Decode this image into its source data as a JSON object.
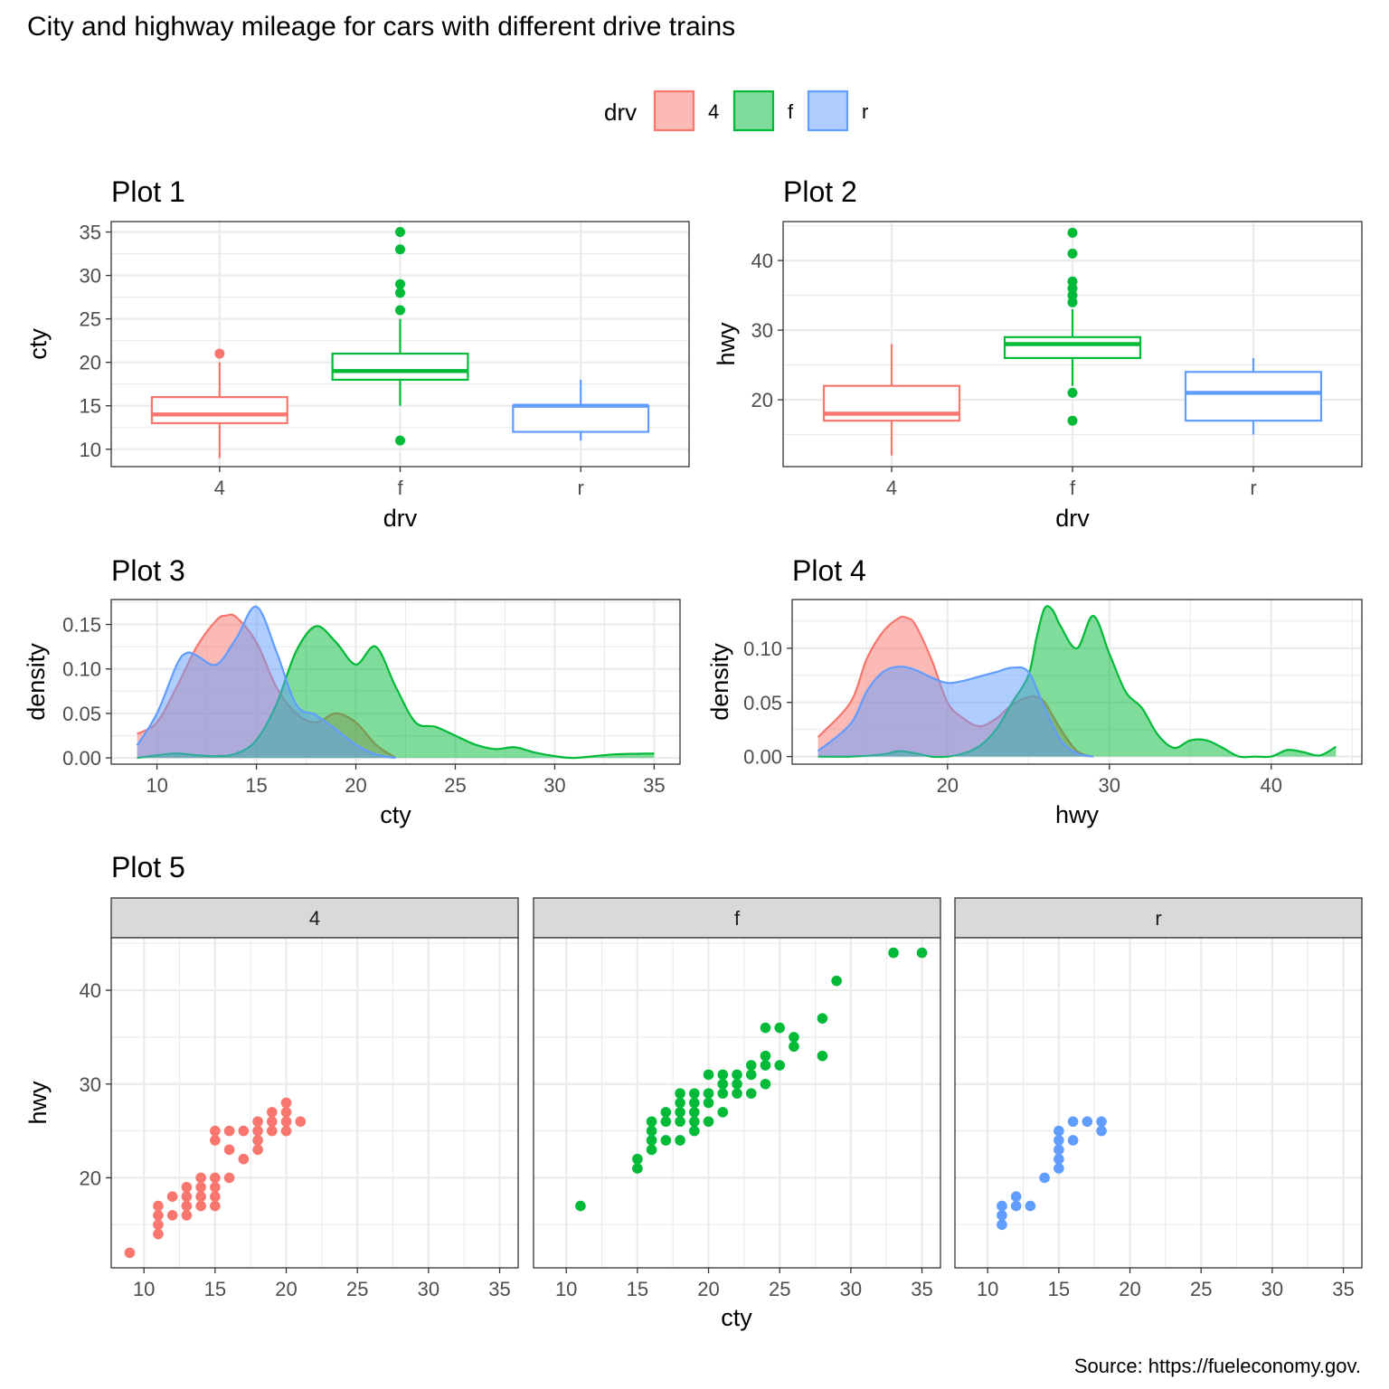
{
  "figure": {
    "title": "City and highway mileage for cars with different drive trains",
    "caption": "Source: https://fueleconomy.gov."
  },
  "legend": {
    "title": "drv",
    "position": "top",
    "entries": [
      {
        "label": "4",
        "color": "#F8766D"
      },
      {
        "label": "f",
        "color": "#00BA38"
      },
      {
        "label": "r",
        "color": "#619CFF"
      }
    ]
  },
  "chart_data": [
    {
      "id": "plot1",
      "type": "boxplot",
      "title": "Plot 1",
      "xlabel": "drv",
      "ylabel": "cty",
      "categories": [
        "4",
        "f",
        "r"
      ],
      "ylim": [
        8,
        36.2
      ],
      "yticks": [
        10,
        15,
        20,
        25,
        30,
        35
      ],
      "grid": true,
      "series": [
        {
          "name": "4",
          "lower_whisker": 9,
          "q1": 13,
          "median": 14,
          "q3": 16,
          "upper_whisker": 20,
          "outliers": [
            21
          ]
        },
        {
          "name": "f",
          "lower_whisker": 15,
          "q1": 18,
          "median": 19,
          "q3": 21,
          "upper_whisker": 25,
          "outliers": [
            11,
            26,
            28,
            29,
            33,
            35
          ]
        },
        {
          "name": "r",
          "lower_whisker": 11,
          "q1": 12,
          "median": 15,
          "q3": 15,
          "upper_whisker": 18,
          "outliers": []
        }
      ]
    },
    {
      "id": "plot2",
      "type": "boxplot",
      "title": "Plot 2",
      "xlabel": "drv",
      "ylabel": "hwy",
      "categories": [
        "4",
        "f",
        "r"
      ],
      "ylim": [
        10.4,
        45.6
      ],
      "yticks": [
        20,
        30,
        40
      ],
      "grid": true,
      "series": [
        {
          "name": "4",
          "lower_whisker": 12,
          "q1": 17,
          "median": 18,
          "q3": 22,
          "upper_whisker": 28,
          "outliers": []
        },
        {
          "name": "f",
          "lower_whisker": 22,
          "q1": 26,
          "median": 28,
          "q3": 29,
          "upper_whisker": 33,
          "outliers": [
            17,
            21,
            34,
            35,
            36,
            37,
            41,
            44
          ]
        },
        {
          "name": "r",
          "lower_whisker": 15,
          "q1": 17,
          "median": 21,
          "q3": 24,
          "upper_whisker": 26,
          "outliers": []
        }
      ]
    },
    {
      "id": "plot3",
      "type": "area",
      "title": "Plot 3",
      "xlabel": "cty",
      "ylabel": "density",
      "xlim": [
        7.7,
        36.3
      ],
      "ylim": [
        -0.007,
        0.178
      ],
      "xticks": [
        10,
        15,
        20,
        25,
        30,
        35
      ],
      "yticks": [
        0.0,
        0.05,
        0.1,
        0.15
      ],
      "ytick_labels": [
        "0.00",
        "0.05",
        "0.10",
        "0.15"
      ],
      "grid": true,
      "series": [
        {
          "name": "4",
          "x": [
            9,
            10,
            11,
            12,
            13,
            13.5,
            14,
            15,
            16,
            17,
            18,
            19,
            20,
            21,
            22
          ],
          "y": [
            0.027,
            0.04,
            0.08,
            0.125,
            0.155,
            0.16,
            0.158,
            0.13,
            0.08,
            0.05,
            0.04,
            0.05,
            0.04,
            0.015,
            0.0
          ]
        },
        {
          "name": "f",
          "x": [
            9,
            10,
            11,
            12,
            13,
            14,
            15,
            16,
            17,
            18,
            19,
            20,
            21,
            22,
            23,
            24,
            25,
            26,
            27,
            28,
            29,
            30,
            31,
            33,
            35
          ],
          "y": [
            0.0,
            0.003,
            0.005,
            0.003,
            0.002,
            0.005,
            0.02,
            0.06,
            0.12,
            0.148,
            0.13,
            0.105,
            0.125,
            0.08,
            0.04,
            0.035,
            0.025,
            0.015,
            0.01,
            0.012,
            0.006,
            0.002,
            0.0,
            0.004,
            0.005
          ]
        },
        {
          "name": "r",
          "x": [
            9,
            10,
            11,
            11.5,
            12,
            13,
            14,
            15,
            16,
            17,
            18,
            19,
            20,
            21,
            22
          ],
          "y": [
            0.014,
            0.05,
            0.105,
            0.118,
            0.115,
            0.105,
            0.135,
            0.17,
            0.12,
            0.06,
            0.048,
            0.032,
            0.015,
            0.004,
            0.0
          ]
        }
      ]
    },
    {
      "id": "plot4",
      "type": "area",
      "title": "Plot 4",
      "xlabel": "hwy",
      "ylabel": "density",
      "xlim": [
        10.4,
        45.6
      ],
      "ylim": [
        -0.007,
        0.145
      ],
      "xticks": [
        20,
        30,
        40
      ],
      "yticks": [
        0.0,
        0.05,
        0.1
      ],
      "ytick_labels": [
        "0.00",
        "0.05",
        "0.10"
      ],
      "grid": true,
      "series": [
        {
          "name": "4",
          "x": [
            12,
            14,
            15,
            16,
            17,
            17.5,
            18,
            19,
            20,
            21,
            22,
            23,
            24,
            25,
            25.5,
            26,
            27,
            28,
            29
          ],
          "y": [
            0.018,
            0.05,
            0.09,
            0.115,
            0.128,
            0.128,
            0.122,
            0.09,
            0.05,
            0.035,
            0.028,
            0.035,
            0.048,
            0.055,
            0.055,
            0.05,
            0.025,
            0.005,
            0.0
          ]
        },
        {
          "name": "f",
          "x": [
            12,
            14,
            16,
            17,
            18,
            19,
            20,
            21,
            22,
            23,
            24,
            25,
            25.5,
            26,
            26.5,
            27,
            28,
            29,
            30,
            31,
            32,
            33,
            34,
            35,
            36,
            37,
            38,
            39,
            40,
            41,
            42,
            43,
            44
          ],
          "y": [
            0.0,
            0.0,
            0.002,
            0.005,
            0.003,
            0.0,
            0.0,
            0.003,
            0.01,
            0.025,
            0.05,
            0.075,
            0.11,
            0.137,
            0.135,
            0.12,
            0.1,
            0.13,
            0.095,
            0.06,
            0.045,
            0.02,
            0.008,
            0.015,
            0.015,
            0.008,
            0.0,
            0.0,
            0.0,
            0.006,
            0.004,
            0.001,
            0.009
          ]
        },
        {
          "name": "r",
          "x": [
            12,
            14,
            15,
            16,
            17,
            18,
            19,
            20,
            21,
            22,
            23,
            24,
            25,
            26,
            27,
            28,
            29
          ],
          "y": [
            0.005,
            0.03,
            0.06,
            0.078,
            0.083,
            0.08,
            0.073,
            0.068,
            0.07,
            0.074,
            0.078,
            0.082,
            0.078,
            0.045,
            0.015,
            0.003,
            0.0
          ]
        }
      ]
    },
    {
      "id": "plot5",
      "type": "scatter",
      "title": "Plot 5",
      "xlabel": "cty",
      "ylabel": "hwy",
      "xlim": [
        7.7,
        36.3
      ],
      "ylim": [
        10.4,
        45.6
      ],
      "xticks": [
        10,
        15,
        20,
        25,
        30,
        35
      ],
      "yticks": [
        20,
        30,
        40
      ],
      "grid": true,
      "facets": [
        {
          "label": "4",
          "points": [
            [
              9,
              12
            ],
            [
              11,
              14
            ],
            [
              11,
              15
            ],
            [
              11,
              16
            ],
            [
              11,
              17
            ],
            [
              12,
              16
            ],
            [
              12,
              18
            ],
            [
              13,
              16
            ],
            [
              13,
              17
            ],
            [
              13,
              18
            ],
            [
              13,
              19
            ],
            [
              14,
              17
            ],
            [
              14,
              18
            ],
            [
              14,
              19
            ],
            [
              14,
              20
            ],
            [
              15,
              17
            ],
            [
              15,
              18
            ],
            [
              15,
              19
            ],
            [
              15,
              20
            ],
            [
              15,
              24
            ],
            [
              15,
              25
            ],
            [
              16,
              20
            ],
            [
              16,
              23
            ],
            [
              16,
              25
            ],
            [
              17,
              22
            ],
            [
              17,
              25
            ],
            [
              18,
              23
            ],
            [
              18,
              24
            ],
            [
              18,
              25
            ],
            [
              18,
              26
            ],
            [
              19,
              25
            ],
            [
              19,
              26
            ],
            [
              19,
              27
            ],
            [
              20,
              25
            ],
            [
              20,
              26
            ],
            [
              20,
              27
            ],
            [
              20,
              28
            ],
            [
              21,
              26
            ]
          ]
        },
        {
          "label": "f",
          "points": [
            [
              11,
              17
            ],
            [
              15,
              21
            ],
            [
              15,
              22
            ],
            [
              16,
              23
            ],
            [
              16,
              24
            ],
            [
              16,
              25
            ],
            [
              16,
              26
            ],
            [
              17,
              24
            ],
            [
              17,
              26
            ],
            [
              17,
              27
            ],
            [
              18,
              24
            ],
            [
              18,
              26
            ],
            [
              18,
              27
            ],
            [
              18,
              28
            ],
            [
              18,
              29
            ],
            [
              19,
              25
            ],
            [
              19,
              26
            ],
            [
              19,
              27
            ],
            [
              19,
              28
            ],
            [
              19,
              29
            ],
            [
              20,
              26
            ],
            [
              20,
              28
            ],
            [
              20,
              29
            ],
            [
              20,
              31
            ],
            [
              21,
              27
            ],
            [
              21,
              29
            ],
            [
              21,
              30
            ],
            [
              21,
              31
            ],
            [
              22,
              29
            ],
            [
              22,
              30
            ],
            [
              22,
              31
            ],
            [
              23,
              29
            ],
            [
              23,
              31
            ],
            [
              23,
              32
            ],
            [
              24,
              30
            ],
            [
              24,
              32
            ],
            [
              24,
              33
            ],
            [
              24,
              36
            ],
            [
              25,
              32
            ],
            [
              25,
              36
            ],
            [
              26,
              34
            ],
            [
              26,
              35
            ],
            [
              28,
              33
            ],
            [
              28,
              37
            ],
            [
              29,
              41
            ],
            [
              33,
              44
            ],
            [
              35,
              44
            ]
          ]
        },
        {
          "label": "r",
          "points": [
            [
              11,
              15
            ],
            [
              11,
              16
            ],
            [
              11,
              17
            ],
            [
              12,
              17
            ],
            [
              12,
              18
            ],
            [
              13,
              17
            ],
            [
              14,
              20
            ],
            [
              15,
              21
            ],
            [
              15,
              22
            ],
            [
              15,
              23
            ],
            [
              15,
              24
            ],
            [
              15,
              25
            ],
            [
              16,
              24
            ],
            [
              16,
              26
            ],
            [
              17,
              26
            ],
            [
              18,
              25
            ],
            [
              18,
              26
            ]
          ]
        }
      ]
    }
  ]
}
